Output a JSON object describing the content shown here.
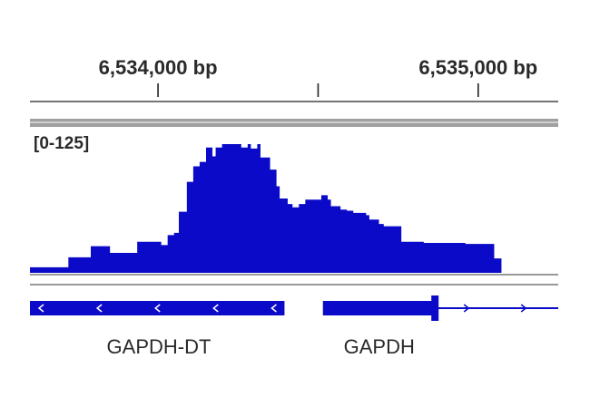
{
  "colors": {
    "signal": "#0a0ac8",
    "gene": "#0a0ac8",
    "ruler": "#222222",
    "separator": "#9a9a9a",
    "text": "#2a2a2a"
  },
  "ruler": {
    "ticks": [
      {
        "position_bp": 6534000,
        "label": "6,534,000 bp"
      },
      {
        "position_bp": 6534500,
        "label": ""
      },
      {
        "position_bp": 6535000,
        "label": "6,535,000 bp"
      }
    ],
    "range_bp": [
      6533600,
      6535250
    ]
  },
  "track": {
    "range_label": "[0-125]",
    "ymax": 125
  },
  "chart_data": {
    "type": "area",
    "title": "",
    "xlabel": "",
    "ylabel": "",
    "xlim": [
      6533600,
      6535250
    ],
    "ylim": [
      0,
      125
    ],
    "grid": false,
    "x": [
      6533600,
      6533670,
      6533720,
      6533790,
      6533850,
      6533935,
      6534010,
      6534030,
      6534050,
      6534065,
      6534090,
      6534110,
      6534130,
      6534150,
      6534170,
      6534180,
      6534200,
      6534230,
      6534250,
      6534260,
      6534280,
      6534290,
      6534310,
      6534320,
      6534350,
      6534370,
      6534380,
      6534390,
      6534405,
      6534420,
      6534440,
      6534460,
      6534510,
      6534520,
      6534530,
      6534540,
      6534570,
      6534590,
      6534610,
      6534650,
      6534660,
      6534690,
      6534705,
      6534730,
      6534760,
      6534830,
      6534870,
      6534920,
      6534960,
      6535050
    ],
    "y": [
      5,
      5,
      14,
      24,
      18,
      28,
      25,
      34,
      36,
      55,
      82,
      96,
      100,
      113,
      105,
      113,
      116,
      116,
      116,
      113,
      116,
      112,
      116,
      104,
      93,
      78,
      67,
      67,
      62,
      59,
      62,
      66,
      70,
      70,
      66,
      60,
      57,
      56,
      54,
      52,
      48,
      44,
      42,
      42,
      28,
      27,
      27,
      27,
      26,
      13
    ]
  },
  "genes": [
    {
      "name": "GAPDH-DT",
      "strand": "-",
      "start_bp": 6533600,
      "end_bp": 6534395,
      "thick_end_bp": 6534395
    },
    {
      "name": "GAPDH",
      "strand": "+",
      "start_bp": 6534515,
      "end_bp": 6535250,
      "thick_end_bp": 6534865
    }
  ]
}
